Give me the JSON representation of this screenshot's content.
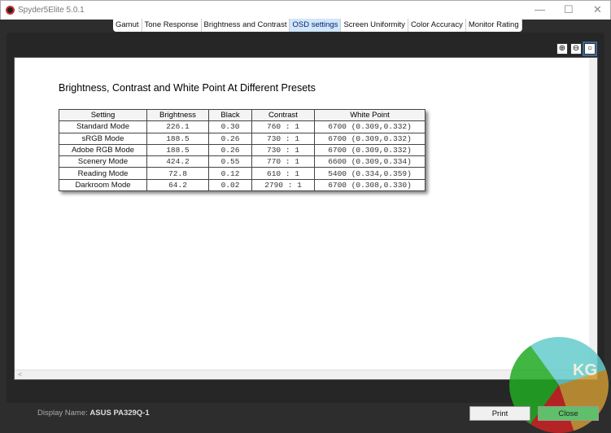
{
  "window": {
    "title": "Spyder5Elite 5.0.1",
    "minimize": "—",
    "maximize": "☐",
    "close": "✕"
  },
  "tabs": [
    {
      "label": "Gamut"
    },
    {
      "label": "Tone Response"
    },
    {
      "label": "Brightness and Contrast"
    },
    {
      "label": "OSD settings",
      "active": true
    },
    {
      "label": "Screen Uniformity"
    },
    {
      "label": "Color Accuracy"
    },
    {
      "label": "Monitor Rating"
    }
  ],
  "zoom_icons": [
    "zoom-in-icon",
    "zoom-out-icon",
    "zoom-fit-icon"
  ],
  "report": {
    "heading": "Brightness, Contrast and White Point At Different Presets",
    "columns": [
      "Setting",
      "Brightness",
      "Black",
      "Contrast",
      "White Point"
    ],
    "rows": [
      [
        "Standard Mode",
        "226.1",
        "0.30",
        "760 : 1",
        "6700 (0.309,0.332)"
      ],
      [
        "sRGB Mode",
        "188.5",
        "0.26",
        "730 : 1",
        "6700 (0.309,0.332)"
      ],
      [
        "Adobe RGB Mode",
        "188.5",
        "0.26",
        "730 : 1",
        "6700 (0.309,0.332)"
      ],
      [
        "Scenery Mode",
        "424.2",
        "0.55",
        "770 : 1",
        "6600 (0.309,0.334)"
      ],
      [
        "Reading Mode",
        "72.8",
        "0.12",
        "610 : 1",
        "5400 (0.334,0.359)"
      ],
      [
        "Darkroom Mode",
        "64.2",
        "0.02",
        "2790 : 1",
        "6700 (0.308,0.330)"
      ]
    ]
  },
  "footer": {
    "display_label": "Display Name:",
    "display_value": "ASUS PA329Q-1",
    "print": "Print",
    "close": "Close"
  },
  "watermark": "KG"
}
